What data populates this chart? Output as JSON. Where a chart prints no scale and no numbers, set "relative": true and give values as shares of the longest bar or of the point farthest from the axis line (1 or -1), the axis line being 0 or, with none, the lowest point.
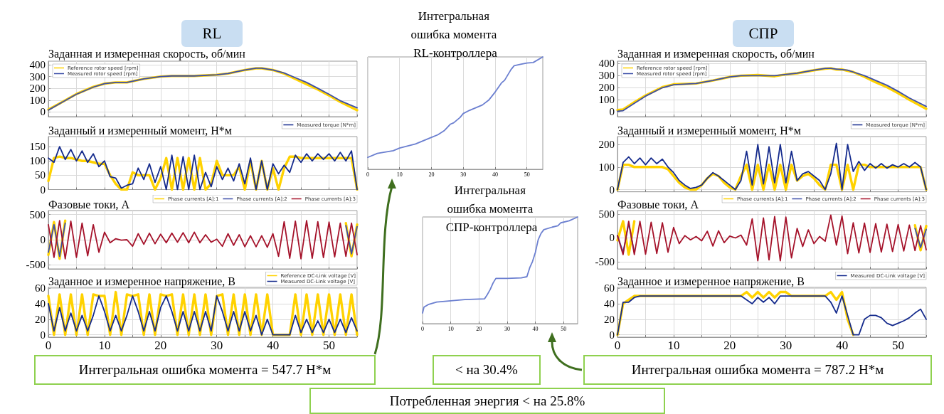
{
  "chart_data": [
    {
      "type": "line",
      "title": "Заданная и измеренная скорость, об/мин",
      "xlim": [
        0,
        55
      ],
      "xticks": [
        0,
        {
          "value": 5,
          "label": null
        },
        10,
        {
          "value": 15,
          "label": null
        },
        20,
        {
          "value": 25,
          "label": null
        },
        30,
        {
          "value": 35,
          "label": null
        },
        40,
        {
          "value": 45,
          "label": null
        },
        50,
        {
          "value": 55,
          "label": null
        }
      ],
      "ylim": [
        -40,
        430
      ],
      "yticks": [
        0,
        100,
        200,
        300,
        400
      ],
      "tick_labels": "y",
      "grid": true,
      "legend": "top left",
      "marker": "none",
      "line_style": "solid",
      "series": [
        {
          "name": "Reference rotor speed [rpm]",
          "color": "#ffd200",
          "x": [
            0,
            2,
            5,
            8,
            10,
            12,
            14,
            17,
            20,
            22,
            26,
            30,
            32,
            35,
            37,
            38,
            40,
            42,
            44,
            46,
            48,
            50,
            52,
            55
          ],
          "values": [
            20,
            72,
            152,
            212,
            240,
            250,
            250,
            280,
            300,
            305,
            305,
            315,
            325,
            355,
            370,
            370,
            355,
            325,
            280,
            235,
            190,
            140,
            85,
            15
          ]
        },
        {
          "name": "Measured rotor speed [rpm]",
          "color": "#3d4fa8",
          "x": [
            0,
            2,
            5,
            8,
            10,
            12,
            14,
            17,
            20,
            22,
            26,
            30,
            32,
            35,
            37,
            38,
            40,
            42,
            44,
            46,
            48,
            50,
            52,
            55
          ],
          "values": [
            15,
            70,
            150,
            210,
            240,
            250,
            250,
            280,
            300,
            305,
            305,
            315,
            325,
            355,
            370,
            370,
            355,
            330,
            290,
            250,
            200,
            150,
            95,
            35
          ]
        }
      ]
    },
    {
      "type": "line",
      "title": "Заданный и измеренный момент, Н*м",
      "x": [
        0,
        1,
        2,
        3,
        4,
        5,
        6,
        7,
        8,
        9,
        10,
        11,
        12,
        13,
        14,
        15,
        16,
        17,
        18,
        19,
        20,
        21,
        22,
        23,
        24,
        25,
        26,
        27,
        28,
        29,
        30,
        31,
        32,
        33,
        34,
        35,
        36,
        37,
        38,
        39,
        40,
        41,
        42,
        43,
        44,
        45,
        46,
        47,
        48,
        49,
        50,
        51,
        52,
        53,
        54,
        55
      ],
      "xlim": [
        0,
        55
      ],
      "xticks": [
        0,
        {
          "value": 5,
          "label": null
        },
        10,
        {
          "value": 15,
          "label": null
        },
        20,
        {
          "value": 25,
          "label": null
        },
        30,
        {
          "value": 35,
          "label": null
        },
        40,
        {
          "value": 45,
          "label": null
        },
        50,
        {
          "value": 55,
          "label": null
        }
      ],
      "ylim": [
        0,
        185
      ],
      "yticks": [
        0,
        50,
        100,
        150
      ],
      "tick_labels": "y",
      "grid": true,
      "legend": "top right",
      "marker": "none",
      "line_style": "solid",
      "series": [
        {
          "color": "#ffd200",
          "values": [
            30,
            110,
            115,
            110,
            110,
            105,
            100,
            100,
            95,
            90,
            90,
            50,
            20,
            0,
            0,
            60,
            50,
            50,
            50,
            0,
            40,
            110,
            0,
            110,
            0,
            110,
            0,
            110,
            0,
            20,
            100,
            50,
            50,
            50,
            80,
            0,
            100,
            0,
            100,
            0,
            75,
            0,
            75,
            115,
            115,
            110,
            110,
            110,
            110,
            110,
            110,
            110,
            110,
            110,
            110,
            0
          ]
        },
        {
          "name": "Measured torque [N*m]",
          "color": "#142a8c",
          "values": [
            110,
            95,
            150,
            105,
            140,
            100,
            135,
            95,
            125,
            80,
            100,
            45,
            40,
            5,
            15,
            20,
            75,
            35,
            90,
            25,
            80,
            0,
            120,
            0,
            115,
            0,
            120,
            0,
            60,
            10,
            80,
            35,
            75,
            30,
            90,
            20,
            110,
            0,
            100,
            0,
            90,
            55,
            85,
            60,
            120,
            95,
            125,
            100,
            125,
            105,
            125,
            100,
            130,
            100,
            135,
            0
          ]
        }
      ]
    },
    {
      "type": "line",
      "title": "Фазовые токи, А",
      "x": [
        0,
        1,
        2,
        3,
        4,
        5,
        6,
        7,
        8,
        9,
        10,
        11,
        12,
        13,
        14,
        15,
        16,
        17,
        18,
        19,
        20,
        21,
        22,
        23,
        24,
        25,
        26,
        27,
        28,
        29,
        30,
        31,
        32,
        33,
        34,
        35,
        36,
        37,
        38,
        39,
        40,
        41,
        42,
        43,
        44,
        45,
        46,
        47,
        48,
        49,
        50,
        51,
        52,
        53,
        54,
        55
      ],
      "xlim": [
        0,
        55
      ],
      "xticks": [
        0,
        {
          "value": 5,
          "label": null
        },
        10,
        {
          "value": 15,
          "label": null
        },
        20,
        {
          "value": 25,
          "label": null
        },
        30,
        {
          "value": 35,
          "label": null
        },
        40,
        {
          "value": 45,
          "label": null
        },
        50,
        {
          "value": 55,
          "label": null
        }
      ],
      "ylim": [
        -580,
        580
      ],
      "yticks": [
        -500,
        0,
        500
      ],
      "tick_labels": "y",
      "grid": true,
      "legend": "top right",
      "marker": "none",
      "line_style": "solid",
      "series": [
        {
          "name": "Phase currents [A]:1",
          "color": "#ffd200",
          "values": [
            -300,
            350,
            -380,
            380,
            null,
            null,
            null,
            null,
            null,
            null,
            null,
            null,
            null,
            null,
            null,
            null,
            null,
            null,
            null,
            null,
            null,
            null,
            null,
            null,
            null,
            null,
            null,
            null,
            null,
            null,
            null,
            null,
            null,
            null,
            null,
            null,
            null,
            null,
            null,
            null,
            null,
            null,
            null,
            null,
            null,
            null,
            null,
            null,
            null,
            null,
            null,
            null,
            null,
            330,
            -330,
            300
          ]
        },
        {
          "name": "Phase currents [A]:2",
          "color": "#3d4fa8",
          "values": [
            -250,
            300,
            -330,
            330,
            null,
            null,
            null,
            null,
            null,
            null,
            null,
            null,
            null,
            null,
            null,
            null,
            null,
            null,
            null,
            null,
            null,
            null,
            null,
            null,
            null,
            null,
            null,
            null,
            null,
            null,
            null,
            null,
            null,
            null,
            null,
            null,
            null,
            null,
            null,
            null,
            null,
            null,
            null,
            null,
            null,
            null,
            null,
            null,
            null,
            null,
            null,
            null,
            null,
            280,
            -280,
            260
          ]
        },
        {
          "name": "Phase currents [A]:3",
          "color": "#a5122a",
          "values": [
            300,
            -350,
            380,
            -380,
            370,
            -350,
            330,
            -320,
            300,
            -250,
            150,
            -60,
            20,
            -10,
            0,
            -130,
            120,
            -90,
            130,
            -80,
            110,
            -60,
            130,
            -50,
            140,
            -60,
            150,
            -60,
            100,
            -50,
            10,
            -130,
            120,
            -110,
            100,
            -140,
            80,
            -140,
            80,
            -150,
            120,
            -330,
            360,
            -370,
            370,
            -380,
            380,
            -370,
            360,
            -355,
            350,
            -340,
            330,
            -330,
            330,
            -300
          ]
        }
      ]
    },
    {
      "type": "line",
      "title": "Заданное и измеренное напряжение, В",
      "x": [
        0,
        1,
        2,
        3,
        4,
        5,
        6,
        7,
        8,
        9,
        10,
        11,
        12,
        13,
        14,
        15,
        16,
        17,
        18,
        19,
        20,
        21,
        22,
        23,
        24,
        25,
        26,
        27,
        28,
        29,
        30,
        31,
        32,
        33,
        34,
        35,
        36,
        37,
        38,
        39,
        40,
        41,
        42,
        43,
        44,
        45,
        46,
        47,
        48,
        49,
        50,
        51,
        52,
        53,
        54,
        55
      ],
      "xlim": [
        0,
        55
      ],
      "xticks": [
        0,
        {
          "value": 5,
          "label": null
        },
        10,
        {
          "value": 15,
          "label": null
        },
        20,
        {
          "value": 25,
          "label": null
        },
        30,
        {
          "value": 35,
          "label": null
        },
        40,
        {
          "value": 45,
          "label": null
        },
        50,
        {
          "value": 55,
          "label": null
        }
      ],
      "ylim": [
        -3,
        61
      ],
      "yticks": [
        0,
        20,
        40,
        60
      ],
      "grid": true,
      "legend": "top right",
      "marker": "none",
      "line_style": "solid",
      "series": [
        {
          "name": "Reference DC-Link voltage [V]",
          "color": "#ffd200",
          "values": [
            50,
            0,
            52,
            0,
            52,
            0,
            52,
            0,
            52,
            50,
            50,
            0,
            55,
            0,
            52,
            50,
            52,
            0,
            52,
            0,
            52,
            50,
            52,
            0,
            52,
            0,
            52,
            0,
            52,
            0,
            50,
            52,
            0,
            52,
            0,
            52,
            0,
            52,
            0,
            52,
            0,
            0,
            0,
            0,
            52,
            0,
            52,
            0,
            52,
            0,
            52,
            0,
            52,
            0,
            52,
            0
          ]
        },
        {
          "name": "Measured DC-Link voltage [V]",
          "color": "#142a8c",
          "values": [
            40,
            5,
            35,
            5,
            28,
            5,
            25,
            5,
            25,
            50,
            30,
            5,
            25,
            5,
            25,
            50,
            30,
            5,
            30,
            5,
            35,
            50,
            30,
            5,
            30,
            5,
            30,
            5,
            30,
            5,
            50,
            30,
            5,
            30,
            5,
            30,
            5,
            25,
            0,
            20,
            0,
            0,
            0,
            0,
            25,
            3,
            20,
            3,
            18,
            3,
            20,
            3,
            20,
            3,
            22,
            5
          ]
        }
      ]
    },
    {
      "type": "line",
      "title": "Интегральная ошибка момента RL-контроллера",
      "relative": true,
      "xlim": [
        0,
        55
      ],
      "xticks": [
        0,
        10,
        20,
        30,
        40,
        50
      ],
      "grid": "x",
      "marker": "none",
      "line_style": "solid",
      "series": [
        {
          "color": "#6b7fd0",
          "x": [
            0,
            3,
            8,
            10,
            15,
            20,
            22,
            24,
            26,
            27,
            29,
            30,
            32,
            36,
            38,
            40,
            42,
            43,
            45,
            46,
            48,
            50,
            52,
            55
          ],
          "values": [
            0.106,
            0.142,
            0.165,
            0.189,
            0.225,
            0.284,
            0.307,
            0.343,
            0.402,
            0.414,
            0.461,
            0.496,
            0.525,
            0.572,
            0.615,
            0.686,
            0.768,
            0.792,
            0.887,
            0.922,
            0.934,
            0.946,
            0.95,
            1
          ]
        }
      ]
    },
    {
      "type": "line",
      "title": "Интегральная ошибка момента СПР-контроллера",
      "relative": true,
      "xlim": [
        0,
        55
      ],
      "xticks": [
        0,
        10,
        20,
        30,
        40,
        50
      ],
      "grid": "x",
      "marker": "none",
      "line_style": "solid",
      "series": [
        {
          "color": "#6b7fd0",
          "x": [
            0,
            0.5,
            2,
            5,
            10,
            15,
            22,
            23,
            24,
            25,
            26,
            30,
            35,
            37,
            38,
            39,
            40,
            41,
            42,
            43,
            46,
            48,
            49,
            52,
            55
          ],
          "values": [
            0.1,
            0.155,
            0.179,
            0.202,
            0.214,
            0.226,
            0.233,
            0.274,
            0.321,
            0.381,
            0.424,
            0.424,
            0.429,
            0.44,
            0.524,
            0.583,
            0.667,
            0.786,
            0.845,
            0.881,
            0.905,
            0.917,
            0.945,
            0.964,
            1
          ]
        }
      ]
    },
    {
      "type": "line",
      "title": "Заданная и измеренная скорость, об/мин",
      "xlim": [
        0,
        55
      ],
      "xticks": [
        0,
        {
          "value": 5,
          "label": null
        },
        10,
        {
          "value": 15,
          "label": null
        },
        20,
        {
          "value": 25,
          "label": null
        },
        30,
        {
          "value": 35,
          "label": null
        },
        40,
        {
          "value": 45,
          "label": null
        },
        50,
        {
          "value": 55,
          "label": null
        }
      ],
      "ylim": [
        -40,
        420
      ],
      "yticks": [
        0,
        100,
        200,
        300,
        400
      ],
      "tick_labels": "y",
      "grid": true,
      "legend": "top left",
      "marker": "none",
      "line_style": "solid",
      "series": [
        {
          "name": "Reference rotor speed [rpm]",
          "color": "#ffd200",
          "x": [
            0,
            1,
            3,
            5,
            8,
            10,
            14,
            17,
            20,
            22,
            25,
            28,
            30,
            32,
            35,
            37,
            38,
            39,
            40,
            41,
            42,
            44,
            46,
            48,
            50,
            52,
            55
          ],
          "values": [
            15,
            20,
            80,
            135,
            205,
            228,
            235,
            260,
            290,
            300,
            305,
            295,
            310,
            320,
            345,
            358,
            362,
            350,
            352,
            340,
            330,
            290,
            245,
            205,
            155,
            100,
            25
          ]
        },
        {
          "name": "Measured rotor speed [rpm]",
          "color": "#3d4fa8",
          "x": [
            0,
            1,
            3,
            5,
            8,
            10,
            14,
            17,
            20,
            22,
            25,
            28,
            30,
            32,
            35,
            37,
            38,
            39,
            40,
            41,
            42,
            44,
            46,
            48,
            50,
            52,
            55
          ],
          "values": [
            5,
            10,
            70,
            130,
            200,
            225,
            235,
            260,
            290,
            300,
            300,
            300,
            310,
            320,
            345,
            360,
            360,
            355,
            350,
            345,
            330,
            300,
            260,
            220,
            170,
            115,
            45
          ]
        }
      ]
    },
    {
      "type": "line",
      "title": "Заданный и измеренный момент, Н*м",
      "x": [
        0,
        1,
        2,
        3,
        4,
        5,
        6,
        7,
        8,
        9,
        10,
        11,
        12,
        13,
        14,
        15,
        16,
        17,
        18,
        19,
        20,
        21,
        22,
        23,
        24,
        25,
        26,
        27,
        28,
        29,
        30,
        31,
        32,
        33,
        34,
        35,
        36,
        37,
        38,
        39,
        40,
        41,
        42,
        43,
        44,
        45,
        46,
        47,
        48,
        49,
        50,
        51,
        52,
        53,
        54,
        55
      ],
      "xlim": [
        0,
        55
      ],
      "xticks": [
        0,
        {
          "value": 5,
          "label": null
        },
        10,
        {
          "value": 15,
          "label": null
        },
        20,
        {
          "value": 25,
          "label": null
        },
        30,
        {
          "value": 35,
          "label": null
        },
        40,
        {
          "value": 45,
          "label": null
        },
        50,
        {
          "value": 55,
          "label": null
        }
      ],
      "ylim": [
        -10,
        235
      ],
      "yticks": [
        0,
        100,
        200
      ],
      "tick_labels": "y",
      "grid": true,
      "legend": "top right",
      "marker": "none",
      "line_style": "solid",
      "series": [
        {
          "color": "#ffd200",
          "values": [
            0,
            110,
            110,
            100,
            100,
            100,
            100,
            100,
            100,
            90,
            60,
            30,
            10,
            0,
            0,
            20,
            50,
            70,
            60,
            30,
            10,
            0,
            60,
            110,
            0,
            110,
            0,
            110,
            0,
            110,
            0,
            110,
            40,
            60,
            70,
            50,
            20,
            0,
            110,
            110,
            0,
            110,
            0,
            110,
            110,
            100,
            100,
            100,
            100,
            100,
            100,
            100,
            100,
            100,
            100,
            0
          ]
        },
        {
          "name": "Measured torque [N*m]",
          "color": "#142a8c",
          "values": [
            0,
            120,
            145,
            115,
            140,
            110,
            140,
            115,
            135,
            100,
            75,
            40,
            20,
            5,
            10,
            20,
            50,
            75,
            60,
            40,
            20,
            0,
            40,
            170,
            20,
            200,
            25,
            190,
            30,
            200,
            30,
            170,
            40,
            70,
            80,
            60,
            40,
            0,
            70,
            205,
            0,
            200,
            80,
            125,
            85,
            115,
            95,
            115,
            95,
            110,
            100,
            115,
            100,
            120,
            100,
            0
          ]
        }
      ]
    },
    {
      "type": "line",
      "title": "Фазовые токи, А",
      "x": [
        0,
        1,
        2,
        3,
        4,
        5,
        6,
        7,
        8,
        9,
        10,
        11,
        12,
        13,
        14,
        15,
        16,
        17,
        18,
        19,
        20,
        21,
        22,
        23,
        24,
        25,
        26,
        27,
        28,
        29,
        30,
        31,
        32,
        33,
        34,
        35,
        36,
        37,
        38,
        39,
        40,
        41,
        42,
        43,
        44,
        45,
        46,
        47,
        48,
        49,
        50,
        51,
        52,
        53,
        54,
        55
      ],
      "xlim": [
        0,
        55
      ],
      "xticks": [
        0,
        {
          "value": 5,
          "label": null
        },
        10,
        {
          "value": 15,
          "label": null
        },
        20,
        {
          "value": 25,
          "label": null
        },
        30,
        {
          "value": 35,
          "label": null
        },
        40,
        {
          "value": 45,
          "label": null
        },
        50,
        {
          "value": 55,
          "label": null
        }
      ],
      "ylim": [
        -650,
        575
      ],
      "yticks": [
        -500,
        0,
        500
      ],
      "tick_labels": "y",
      "grid": true,
      "legend": "top right",
      "marker": "none",
      "line_style": "solid",
      "series": [
        {
          "name": "Phase currents [A]:1",
          "color": "#ffd200",
          "values": [
            -50,
            350,
            -350,
            350,
            null,
            null,
            null,
            null,
            null,
            null,
            null,
            null,
            null,
            null,
            null,
            null,
            null,
            null,
            null,
            null,
            null,
            null,
            null,
            null,
            null,
            null,
            null,
            null,
            null,
            null,
            null,
            null,
            null,
            null,
            null,
            null,
            null,
            null,
            null,
            null,
            null,
            null,
            null,
            null,
            null,
            null,
            null,
            null,
            null,
            null,
            null,
            null,
            null,
            265,
            -260,
            250
          ]
        },
        {
          "name": "Phase currents [A]:2",
          "color": "#3d4fa8",
          "values": [
            50,
            -300,
            300,
            -300,
            null,
            null,
            null,
            null,
            null,
            null,
            null,
            null,
            null,
            null,
            null,
            null,
            null,
            null,
            null,
            null,
            null,
            null,
            null,
            null,
            null,
            null,
            null,
            null,
            null,
            null,
            null,
            null,
            null,
            null,
            null,
            null,
            null,
            null,
            null,
            null,
            null,
            null,
            null,
            null,
            null,
            null,
            null,
            null,
            null,
            null,
            null,
            null,
            null,
            200,
            -200,
            180
          ]
        },
        {
          "name": "Phase currents [A]:3",
          "color": "#a5122a",
          "values": [
            50,
            -350,
            350,
            -350,
            350,
            -340,
            330,
            -325,
            320,
            -300,
            220,
            -120,
            50,
            -40,
            30,
            -60,
            140,
            -170,
            150,
            -100,
            40,
            0,
            60,
            -150,
            400,
            -480,
            420,
            -460,
            450,
            -480,
            440,
            -420,
            200,
            -180,
            170,
            -120,
            30,
            -70,
            480,
            -150,
            460,
            -330,
            320,
            -315,
            310,
            -305,
            300,
            -295,
            290,
            -285,
            280,
            -275,
            270,
            -265,
            260,
            -250
          ]
        }
      ]
    },
    {
      "type": "line",
      "title": "Заданное и измеренное напряжение, В",
      "x": [
        0,
        1,
        2,
        3,
        4,
        5,
        6,
        7,
        8,
        9,
        10,
        11,
        12,
        13,
        14,
        15,
        16,
        17,
        18,
        19,
        20,
        21,
        22,
        23,
        24,
        25,
        26,
        27,
        28,
        29,
        30,
        31,
        32,
        33,
        34,
        35,
        36,
        37,
        38,
        39,
        40,
        41,
        42,
        43,
        44,
        45,
        46,
        47,
        48,
        49,
        50,
        51,
        52,
        53,
        54,
        55
      ],
      "xlim": [
        0,
        55
      ],
      "xticks": [
        0,
        {
          "value": 5,
          "label": null
        },
        10,
        {
          "value": 15,
          "label": null
        },
        20,
        {
          "value": 25,
          "label": null
        },
        30,
        {
          "value": 35,
          "label": null
        },
        40,
        {
          "value": 45,
          "label": null
        },
        50,
        {
          "value": 55,
          "label": null
        }
      ],
      "ylim": [
        -3,
        61
      ],
      "yticks": [
        0,
        20,
        40,
        60
      ],
      "grid": true,
      "legend": "top right",
      "marker": "none",
      "line_style": "solid",
      "series": [
        {
          "color": "#ffd200",
          "values": [
            0,
            40,
            45,
            50,
            50,
            50,
            50,
            50,
            50,
            50,
            50,
            50,
            50,
            50,
            50,
            50,
            50,
            50,
            50,
            50,
            50,
            50,
            50,
            55,
            48,
            55,
            48,
            55,
            48,
            55,
            55,
            50,
            50,
            50,
            50,
            50,
            50,
            50,
            55,
            45,
            55,
            20,
            0,
            null,
            null,
            null,
            null,
            null,
            null,
            null,
            null,
            null,
            null,
            null,
            null,
            null
          ]
        },
        {
          "name": "Measured DC-Link voltage [V]",
          "color": "#142a8c",
          "values": [
            0,
            42,
            42,
            48,
            50,
            50,
            50,
            50,
            50,
            50,
            50,
            50,
            50,
            50,
            50,
            50,
            50,
            50,
            50,
            50,
            50,
            50,
            50,
            45,
            40,
            48,
            42,
            48,
            40,
            50,
            50,
            50,
            50,
            50,
            50,
            50,
            50,
            50,
            42,
            28,
            50,
            25,
            0,
            0,
            20,
            25,
            25,
            22,
            15,
            12,
            15,
            18,
            22,
            28,
            33,
            20
          ]
        }
      ]
    },
    {
      "type": "other",
      "annotations": [
        "RL",
        "СПР",
        "Интегральная ошибка момента = 547.7 Н*м",
        "< на 30.4%",
        "Интегральная ошибка момента = 787.2 Н*м",
        "Потребленная энергия < на 25.8%"
      ]
    }
  ]
}
